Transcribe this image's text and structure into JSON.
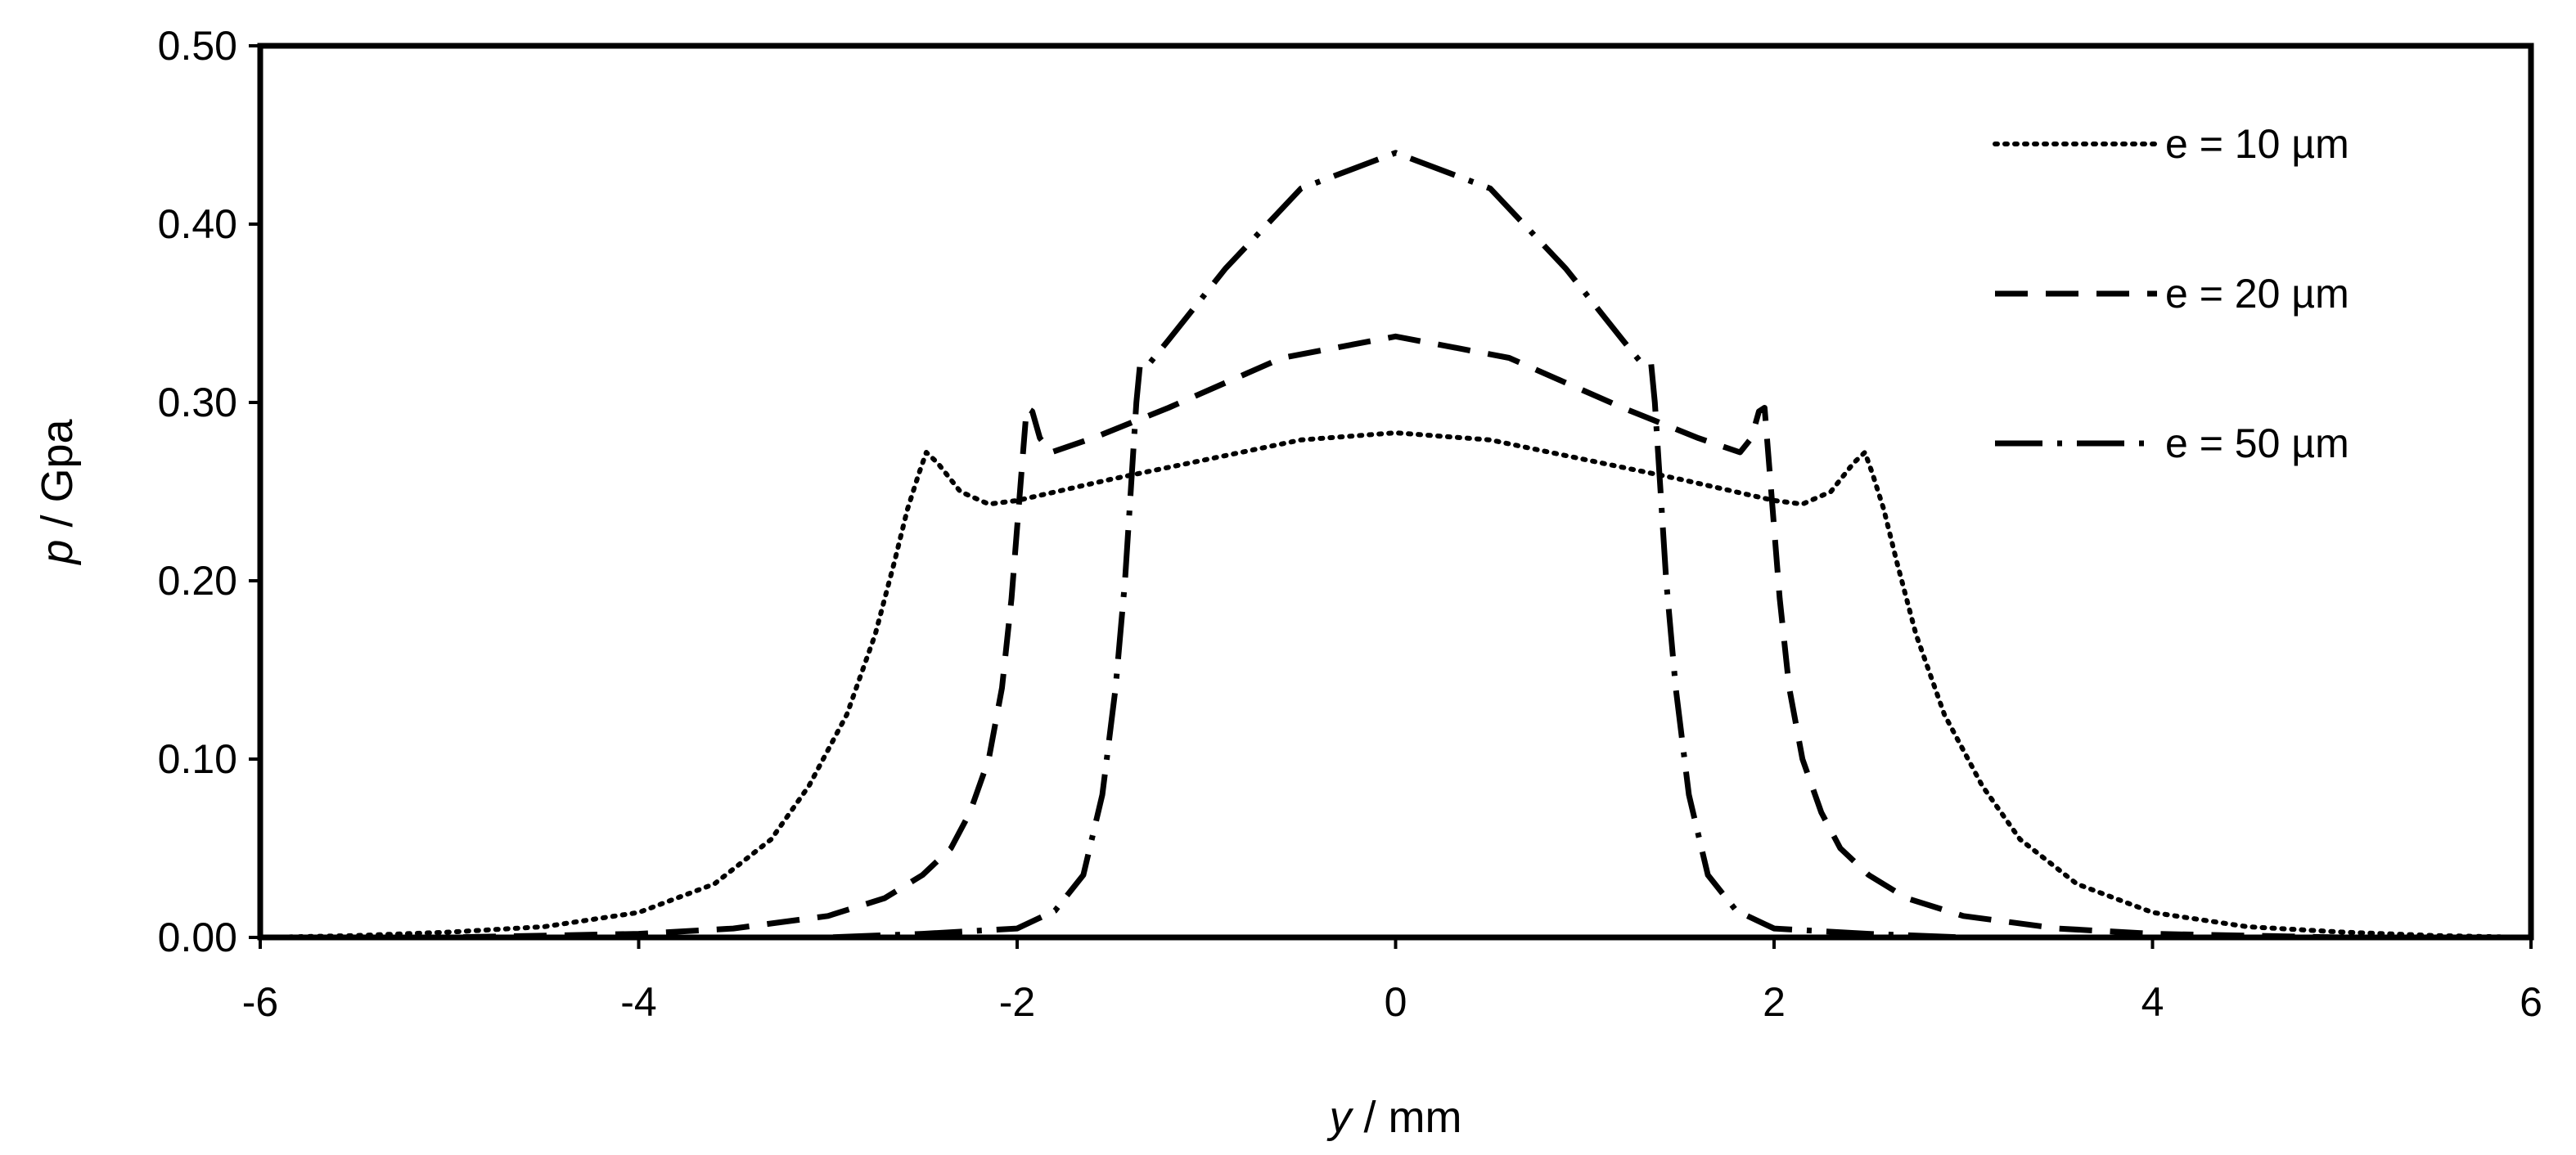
{
  "chart_data": {
    "type": "line",
    "title": "",
    "xlabel": {
      "var": "y",
      "unit": " / mm"
    },
    "ylabel": {
      "var": "p",
      "unit": " / Gpa"
    },
    "xlim": [
      -6,
      6
    ],
    "ylim": [
      0,
      0.5
    ],
    "xticks": [
      -6,
      -4,
      -2,
      0,
      2,
      4,
      6
    ],
    "xtick_labels": [
      "-6",
      "-4",
      "-2",
      "0",
      "2",
      "4",
      "6"
    ],
    "yticks": [
      0,
      0.1,
      0.2,
      0.3,
      0.4,
      0.5
    ],
    "ytick_labels": [
      "0.00",
      "0.10",
      "0.20",
      "0.30",
      "0.40",
      "0.50"
    ],
    "grid": false,
    "legend_position": "top-right",
    "line_color": "#000000",
    "series": [
      {
        "name": "e = 10 µm",
        "style": "dotted",
        "points": [
          [
            -6,
            0.0
          ],
          [
            -5.5,
            0.001
          ],
          [
            -5.0,
            0.003
          ],
          [
            -4.5,
            0.006
          ],
          [
            -4.0,
            0.014
          ],
          [
            -3.6,
            0.03
          ],
          [
            -3.3,
            0.055
          ],
          [
            -3.1,
            0.085
          ],
          [
            -2.9,
            0.125
          ],
          [
            -2.75,
            0.17
          ],
          [
            -2.65,
            0.21
          ],
          [
            -2.58,
            0.24
          ],
          [
            -2.52,
            0.26
          ],
          [
            -2.48,
            0.272
          ],
          [
            -2.42,
            0.266
          ],
          [
            -2.3,
            0.25
          ],
          [
            -2.15,
            0.243
          ],
          [
            -2.0,
            0.245
          ],
          [
            -1.5,
            0.257
          ],
          [
            -1.0,
            0.268
          ],
          [
            -0.5,
            0.279
          ],
          [
            0.0,
            0.283
          ],
          [
            0.5,
            0.279
          ],
          [
            1.0,
            0.268
          ],
          [
            1.5,
            0.257
          ],
          [
            2.0,
            0.245
          ],
          [
            2.15,
            0.243
          ],
          [
            2.3,
            0.25
          ],
          [
            2.42,
            0.266
          ],
          [
            2.48,
            0.272
          ],
          [
            2.52,
            0.26
          ],
          [
            2.58,
            0.24
          ],
          [
            2.65,
            0.21
          ],
          [
            2.75,
            0.17
          ],
          [
            2.9,
            0.125
          ],
          [
            3.1,
            0.085
          ],
          [
            3.3,
            0.055
          ],
          [
            3.6,
            0.03
          ],
          [
            4.0,
            0.014
          ],
          [
            4.5,
            0.006
          ],
          [
            5.0,
            0.003
          ],
          [
            5.5,
            0.001
          ],
          [
            6,
            0.0
          ]
        ]
      },
      {
        "name": "e = 20 µm",
        "style": "dashed",
        "points": [
          [
            -6,
            0.0
          ],
          [
            -5.0,
            0.0
          ],
          [
            -4.0,
            0.002
          ],
          [
            -3.5,
            0.005
          ],
          [
            -3.0,
            0.012
          ],
          [
            -2.7,
            0.022
          ],
          [
            -2.5,
            0.035
          ],
          [
            -2.35,
            0.05
          ],
          [
            -2.25,
            0.07
          ],
          [
            -2.15,
            0.1
          ],
          [
            -2.08,
            0.14
          ],
          [
            -2.03,
            0.19
          ],
          [
            -2.0,
            0.23
          ],
          [
            -1.97,
            0.27
          ],
          [
            -1.95,
            0.297
          ],
          [
            -1.92,
            0.295
          ],
          [
            -1.88,
            0.28
          ],
          [
            -1.82,
            0.272
          ],
          [
            -1.6,
            0.28
          ],
          [
            -1.2,
            0.297
          ],
          [
            -0.6,
            0.325
          ],
          [
            0.0,
            0.337
          ],
          [
            0.6,
            0.325
          ],
          [
            1.2,
            0.297
          ],
          [
            1.6,
            0.28
          ],
          [
            1.82,
            0.272
          ],
          [
            1.88,
            0.28
          ],
          [
            1.92,
            0.295
          ],
          [
            1.95,
            0.297
          ],
          [
            1.97,
            0.27
          ],
          [
            2.0,
            0.23
          ],
          [
            2.03,
            0.19
          ],
          [
            2.08,
            0.14
          ],
          [
            2.15,
            0.1
          ],
          [
            2.25,
            0.07
          ],
          [
            2.35,
            0.05
          ],
          [
            2.5,
            0.035
          ],
          [
            2.7,
            0.022
          ],
          [
            3.0,
            0.012
          ],
          [
            3.5,
            0.005
          ],
          [
            4.0,
            0.002
          ],
          [
            5.0,
            0.0
          ],
          [
            6,
            0.0
          ]
        ]
      },
      {
        "name": "e = 50 µm",
        "style": "dashdot",
        "points": [
          [
            -6,
            0.0
          ],
          [
            -4.0,
            0.0
          ],
          [
            -3.0,
            0.0
          ],
          [
            -2.5,
            0.002
          ],
          [
            -2.0,
            0.005
          ],
          [
            -1.8,
            0.015
          ],
          [
            -1.65,
            0.035
          ],
          [
            -1.55,
            0.08
          ],
          [
            -1.48,
            0.14
          ],
          [
            -1.43,
            0.2
          ],
          [
            -1.4,
            0.25
          ],
          [
            -1.37,
            0.3
          ],
          [
            -1.35,
            0.322
          ],
          [
            -1.3,
            0.322
          ],
          [
            -1.2,
            0.335
          ],
          [
            -0.9,
            0.375
          ],
          [
            -0.5,
            0.42
          ],
          [
            0.0,
            0.44
          ],
          [
            0.5,
            0.42
          ],
          [
            0.9,
            0.375
          ],
          [
            1.2,
            0.335
          ],
          [
            1.3,
            0.322
          ],
          [
            1.35,
            0.322
          ],
          [
            1.37,
            0.3
          ],
          [
            1.4,
            0.25
          ],
          [
            1.43,
            0.2
          ],
          [
            1.48,
            0.14
          ],
          [
            1.55,
            0.08
          ],
          [
            1.65,
            0.035
          ],
          [
            1.8,
            0.015
          ],
          [
            2.0,
            0.005
          ],
          [
            2.5,
            0.002
          ],
          [
            3.0,
            0.0
          ],
          [
            4.0,
            0.0
          ],
          [
            6,
            0.0
          ]
        ]
      }
    ]
  }
}
